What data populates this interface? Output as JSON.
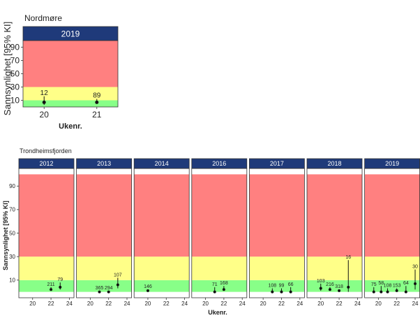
{
  "colors": {
    "strip": "#1f3a7a",
    "strip_text": "#ffffff",
    "zone_high": "#ff8080",
    "zone_mid": "#ffff88",
    "zone_low": "#88ff88",
    "point": "#111111"
  },
  "chart_data": [
    {
      "type": "scatter",
      "title": "Nordmøre",
      "xlabel": "Ukenr.",
      "ylabel": "Sannsynlighet [95% KI]",
      "ylim": [
        0,
        100
      ],
      "y_ticks": [
        10,
        30,
        50,
        70,
        90
      ],
      "zones": [
        {
          "from": 0,
          "to": 10,
          "color": "green"
        },
        {
          "from": 10,
          "to": 30,
          "color": "yellow"
        },
        {
          "from": 30,
          "to": 100,
          "color": "red"
        }
      ],
      "panels": [
        {
          "label": "2019",
          "x_ticks": [
            20,
            21
          ],
          "xlim": [
            19.6,
            21.4
          ],
          "points": [
            {
              "x": 20,
              "y": 7,
              "low": 3,
              "high": 16,
              "n": "12"
            },
            {
              "x": 21,
              "y": 7,
              "low": 5,
              "high": 12,
              "n": "89"
            }
          ]
        }
      ]
    },
    {
      "type": "scatter",
      "title": "Trondheimsfjorden",
      "xlabel": "Ukenr.",
      "ylabel": "Sannsynlighet [95% KI]",
      "ylim": [
        -5,
        105
      ],
      "y_ticks": [
        10,
        30,
        50,
        70,
        90
      ],
      "zones": [
        {
          "from": 0,
          "to": 10,
          "color": "green"
        },
        {
          "from": 10,
          "to": 30,
          "color": "yellow"
        },
        {
          "from": 30,
          "to": 100,
          "color": "red"
        }
      ],
      "x_ticks": [
        20,
        22,
        24
      ],
      "xlim": [
        18.5,
        24.5
      ],
      "panels": [
        {
          "label": "2012",
          "points": [
            {
              "x": 22,
              "y": 2,
              "low": 1,
              "high": 4,
              "n": "211"
            },
            {
              "x": 23,
              "y": 4,
              "low": 2,
              "high": 8,
              "n": "79"
            }
          ]
        },
        {
          "label": "2013",
          "points": [
            {
              "x": 21,
              "y": 0,
              "low": 0,
              "high": 1,
              "n": "365"
            },
            {
              "x": 22,
              "y": 0,
              "low": 0,
              "high": 1,
              "n": "294"
            },
            {
              "x": 23,
              "y": 6,
              "low": 3,
              "high": 12,
              "n": "107"
            }
          ]
        },
        {
          "label": "2014",
          "points": [
            {
              "x": 20,
              "y": 1,
              "low": 0,
              "high": 2,
              "n": "146"
            }
          ]
        },
        {
          "label": "2016",
          "points": [
            {
              "x": 21,
              "y": 0,
              "low": 0,
              "high": 4,
              "n": "71"
            },
            {
              "x": 22,
              "y": 2,
              "low": 1,
              "high": 5,
              "n": "168"
            }
          ]
        },
        {
          "label": "2017",
          "points": [
            {
              "x": 21,
              "y": 0,
              "low": 0,
              "high": 3,
              "n": "108"
            },
            {
              "x": 22,
              "y": 0,
              "low": 0,
              "high": 3,
              "n": "99"
            },
            {
              "x": 23,
              "y": 0,
              "low": 0,
              "high": 4,
              "n": "66"
            }
          ]
        },
        {
          "label": "2018",
          "points": [
            {
              "x": 20,
              "y": 3,
              "low": 1,
              "high": 7,
              "n": "103"
            },
            {
              "x": 21,
              "y": 2,
              "low": 1,
              "high": 4,
              "n": "216"
            },
            {
              "x": 22,
              "y": 1,
              "low": 0,
              "high": 2,
              "n": "318"
            },
            {
              "x": 23,
              "y": 4,
              "low": 0,
              "high": 27,
              "n": "16"
            }
          ]
        },
        {
          "label": "2019",
          "points": [
            {
              "x": 19.5,
              "y": 0,
              "low": 0,
              "high": 4,
              "n": "75"
            },
            {
              "x": 20.3,
              "y": 0,
              "low": 0,
              "high": 5,
              "n": "58"
            },
            {
              "x": 21,
              "y": 0,
              "low": 0,
              "high": 3,
              "n": "108"
            },
            {
              "x": 22,
              "y": 1,
              "low": 0,
              "high": 3,
              "n": "153"
            },
            {
              "x": 23,
              "y": 0,
              "low": 0,
              "high": 5,
              "n": "64"
            },
            {
              "x": 24,
              "y": 7,
              "low": 2,
              "high": 19,
              "n": "30"
            }
          ]
        }
      ]
    }
  ]
}
